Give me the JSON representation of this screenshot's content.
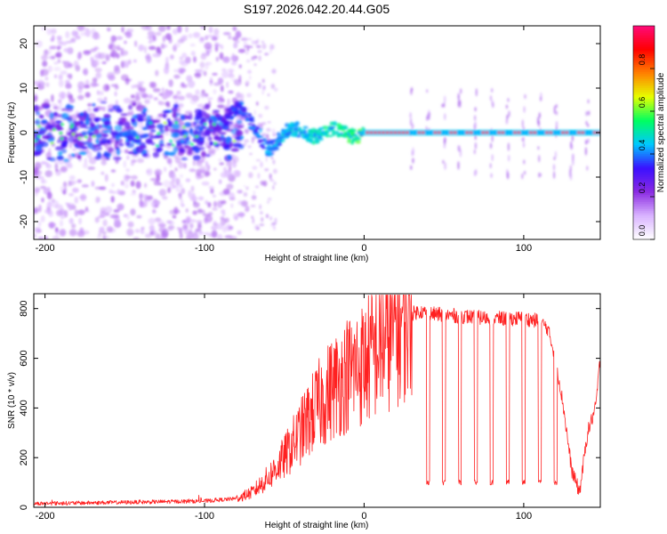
{
  "title": "S197.2026.042.20.44.G05",
  "chart_data": [
    {
      "type": "heatmap",
      "title": "S197.2026.042.20.44.G05",
      "xlabel": "Height of straight line (km)",
      "ylabel": "Frequency (Hz)",
      "xlim": [
        -207,
        148
      ],
      "ylim": [
        -24,
        24
      ],
      "xticks": [
        -200,
        -100,
        0,
        100
      ],
      "yticks": [
        -20,
        -10,
        0,
        10,
        20
      ],
      "colorbar": {
        "label": "Normalized spectral amplitude",
        "range": [
          0,
          1
        ],
        "ticks": [
          "0.0",
          "0.2",
          "0.4",
          "0.6",
          "0.8"
        ],
        "tick_values": [
          0.0,
          0.2,
          0.4,
          0.6,
          0.8
        ],
        "colormap": [
          "#ffffff",
          "#d9b3ff",
          "#8a2be2",
          "#3a10ff",
          "#00c8ff",
          "#00ff60",
          "#e6ff00",
          "#ff8000",
          "#ff0000",
          "#ff0a7a"
        ]
      },
      "features": {
        "main_line_frequency_hz": 0,
        "main_line_amplitude": 0.95,
        "periodic_pulse_heights_km": [
          30,
          40,
          50,
          60,
          70,
          80,
          90,
          100,
          110,
          120,
          130,
          140
        ]
      }
    },
    {
      "type": "line",
      "xlabel": "Height of straight line (km)",
      "ylabel": "SNR (10 * v/v)",
      "xlim": [
        -207,
        148
      ],
      "ylim": [
        0,
        860
      ],
      "xticks": [
        -200,
        -100,
        0,
        100
      ],
      "yticks": [
        0,
        200,
        400,
        600,
        800
      ],
      "series": [
        {
          "name": "SNR",
          "color": "#ff2020",
          "x": [
            -207,
            -150,
            -100,
            -90,
            -80,
            -70,
            -60,
            -50,
            -40,
            -30,
            -20,
            -10,
            0,
            10,
            20,
            30,
            35,
            40,
            60,
            80,
            100,
            110,
            115,
            120,
            125,
            130,
            135,
            140,
            145,
            148
          ],
          "y": [
            15,
            20,
            25,
            30,
            35,
            60,
            120,
            200,
            300,
            400,
            480,
            540,
            580,
            650,
            720,
            780,
            790,
            780,
            770,
            760,
            760,
            750,
            720,
            600,
            400,
            150,
            60,
            300,
            400,
            600
          ]
        }
      ],
      "dropouts": {
        "heights_km": [
          40,
          50,
          60,
          70,
          80,
          90,
          100,
          110,
          120
        ],
        "width_km": 2,
        "snr_value": 100
      }
    }
  ]
}
